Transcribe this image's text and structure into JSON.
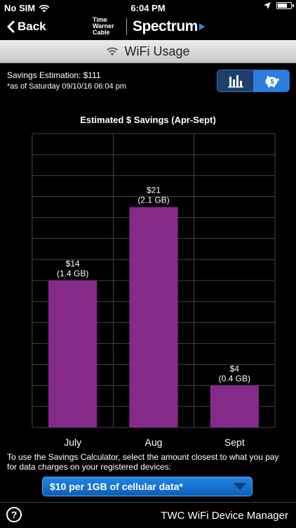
{
  "status_bar": {
    "carrier": "No SIM",
    "time": "6:04 PM",
    "icons": [
      "wifi-icon",
      "location-arrow-icon",
      "battery-icon"
    ]
  },
  "nav": {
    "back_label": "Back",
    "brand_twc": "Time Warner Cable",
    "brand_spectrum": "Spectrum",
    "colors": {
      "spectrum_accent": "#2d8ad7"
    }
  },
  "title_bar": {
    "title": "WiFi Usage",
    "icon": "wifi-icon"
  },
  "savings": {
    "estimation": "Savings Estimation: $111",
    "as_of": "*as of Saturday 09/10/16 06:04 pm"
  },
  "view_toggle": {
    "options": [
      "bar-chart-icon",
      "piggy-bank-icon"
    ],
    "selected": "piggy-bank-icon"
  },
  "chart_data": {
    "type": "bar",
    "title": "Estimated $ Savings (Apr-Sept)",
    "categories": [
      "July",
      "Aug",
      "Sept"
    ],
    "values": [
      14,
      21,
      4
    ],
    "data_labels": [
      [
        "$14",
        "(1.4 GB)"
      ],
      [
        "$21",
        "(2.1 GB)"
      ],
      [
        "$4",
        "(0.4 GB)"
      ]
    ],
    "ylim": [
      0,
      28
    ],
    "grid": true,
    "bar_color": "#862a8a"
  },
  "calculator": {
    "instructions": "To use the Savings Calculator, select the amount closest to what you pay for data charges on your registered devices:",
    "selected_option": "$10 per 1GB of cellular data*"
  },
  "footer": {
    "help_label": "?",
    "app_name": "TWC WiFi Device Manager"
  }
}
